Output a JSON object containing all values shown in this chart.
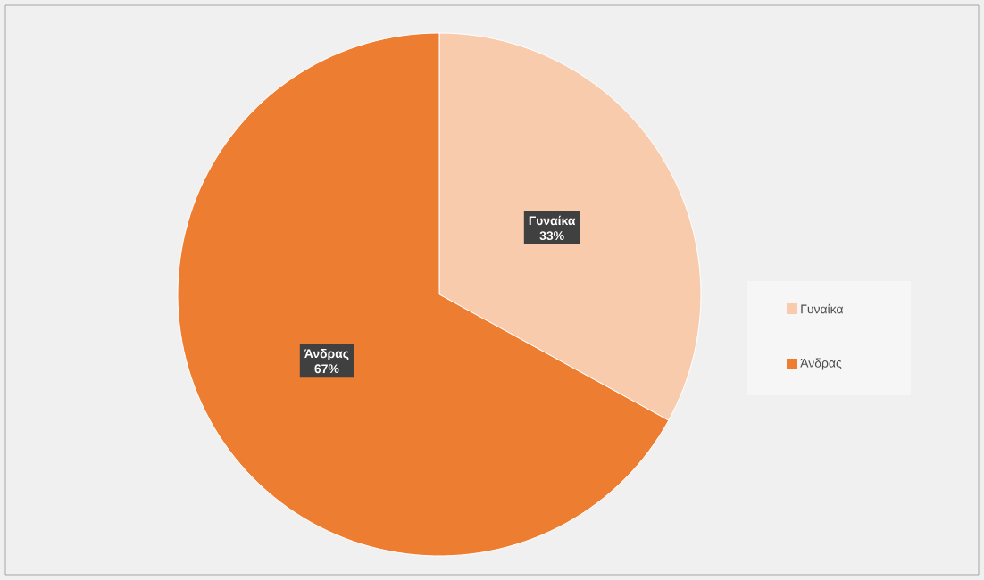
{
  "chart_data": {
    "type": "pie",
    "categories": [
      "Γυναίκα",
      "Άνδρας"
    ],
    "values": [
      33,
      67
    ],
    "value_labels": [
      "33%",
      "67%"
    ],
    "colors": [
      "#f8cbad",
      "#ed7d31"
    ],
    "legend": "right"
  }
}
